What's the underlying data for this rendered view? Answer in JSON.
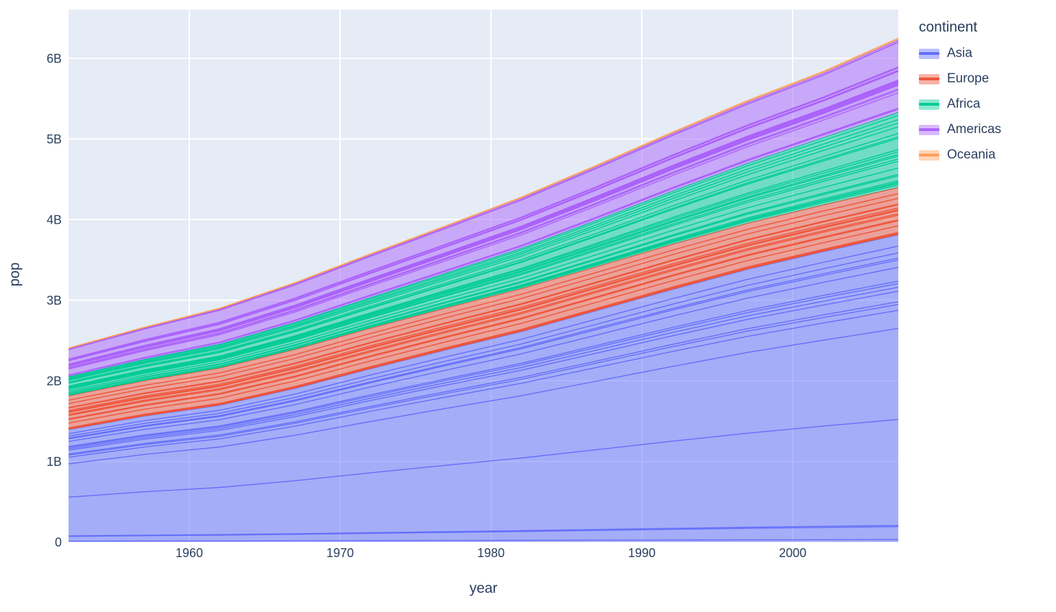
{
  "chart_data": {
    "type": "area",
    "stacked": true,
    "title": "",
    "xlabel": "year",
    "ylabel": "pop",
    "legend_title": "continent",
    "legend_position": "right",
    "grid": true,
    "x": [
      1952,
      1957,
      1962,
      1967,
      1972,
      1977,
      1982,
      1987,
      1992,
      1997,
      2002,
      2007
    ],
    "xlim": [
      1952,
      2007
    ],
    "ylim_billions": [
      0,
      6.6
    ],
    "x_tick_values": [
      1960,
      1970,
      1980,
      1990,
      2000
    ],
    "x_tick_labels": [
      "1960",
      "1970",
      "1980",
      "1990",
      "2000"
    ],
    "y_tick_values_billions": [
      0,
      1,
      2,
      3,
      4,
      5,
      6
    ],
    "y_tick_labels": [
      "0",
      "1B",
      "2B",
      "3B",
      "4B",
      "5B",
      "6B"
    ],
    "series": [
      {
        "name": "Asia",
        "color": "#636EFA",
        "values_billions": [
          1.3954,
          1.5624,
          1.6964,
          1.9056,
          2.1502,
          2.384,
          2.6104,
          2.8715,
          3.133,
          3.3833,
          3.6016,
          3.8116
        ],
        "band_fractions": [
          0.008,
          0.042,
          0.004,
          0.345,
          0.296,
          0.059,
          0.019,
          0.009,
          0.034,
          0.013,
          0.012,
          0.008,
          0.045,
          0.024,
          0.006,
          0.017,
          0.022,
          0.037
        ]
      },
      {
        "name": "Europe",
        "color": "#EF553B",
        "values_billions": [
          0.4185,
          0.4379,
          0.4605,
          0.4814,
          0.5008,
          0.5172,
          0.531,
          0.5432,
          0.5581,
          0.569,
          0.578,
          0.5861
        ],
        "band_fractions": [
          0.01,
          0.02,
          0.02,
          0.14,
          0.105,
          0.02,
          0.1,
          0.03,
          0.065,
          0.02,
          0.035,
          0.07,
          0.015,
          0.12,
          0.1,
          0.13
        ]
      },
      {
        "name": "Africa",
        "color": "#00CC96",
        "values_billions": [
          0.2374,
          0.2646,
          0.2959,
          0.3354,
          0.3797,
          0.4331,
          0.4993,
          0.5748,
          0.6591,
          0.7437,
          0.8333,
          0.9295
        ],
        "band_fractions": [
          0.035,
          0.02,
          0.015,
          0.02,
          0.065,
          0.02,
          0.085,
          0.09,
          0.03,
          0.04,
          0.02,
          0.035,
          0.03,
          0.15,
          0.02,
          0.045,
          0.09,
          0.05,
          0.045,
          0.055,
          0.04
        ]
      },
      {
        "name": "Americas",
        "color": "#AB63FA",
        "values_billions": [
          0.3451,
          0.3869,
          0.4339,
          0.4807,
          0.5279,
          0.572,
          0.6181,
          0.665,
          0.711,
          0.757,
          0.7997,
          0.8988
        ],
        "band_fractions": [
          0.044,
          0.01,
          0.008,
          0.21,
          0.036,
          0.018,
          0.05,
          0.005,
          0.012,
          0.01,
          0.015,
          0.01,
          0.008,
          0.012,
          0.12,
          0.006,
          0.004,
          0.007,
          0.031,
          0.004,
          0.01,
          0.34,
          0.004,
          0.026
        ]
      },
      {
        "name": "Oceania",
        "color": "#FFA15A",
        "values_billions": [
          0.0106,
          0.0117,
          0.0128,
          0.014,
          0.0152,
          0.0163,
          0.0175,
          0.0188,
          0.0202,
          0.0215,
          0.0227,
          0.0245
        ],
        "band_fractions": [
          0.83,
          0.17
        ]
      }
    ],
    "band_fractions_note": "approximate positions of the thin country sub-band boundary lines visible inside each continent band, as fractions of the continent total",
    "style": {
      "plot_bg": "#E5ECF6",
      "grid_color": "#FFFFFF",
      "text_color": "#2a3f5f",
      "fill_opacity": 0.5
    }
  }
}
